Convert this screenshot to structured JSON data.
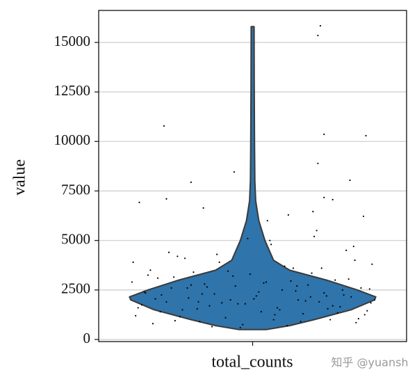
{
  "chart_data": {
    "type": "violin",
    "category": "total_counts",
    "ylabel": "value",
    "watermark": "知乎 @yuansh",
    "color": "#2f74aa",
    "ylim": [
      -105,
      16615
    ],
    "yticks": [
      0,
      2500,
      5000,
      7500,
      10000,
      12500,
      15000
    ],
    "grid": true,
    "xlim": [
      -1.25,
      1.25
    ],
    "violin": {
      "y": [
        500,
        700,
        1000,
        1500,
        2000,
        2150,
        2500,
        3000,
        3500,
        4000,
        5000,
        6000,
        7000,
        8000,
        10000,
        13000,
        15800
      ],
      "density": [
        0.11,
        0.3,
        0.5,
        0.8,
        0.99,
        1.0,
        0.85,
        0.6,
        0.3,
        0.17,
        0.1,
        0.05,
        0.025,
        0.018,
        0.015,
        0.013,
        0.012
      ]
    },
    "points": {
      "jitter": [
        0.55,
        0.53,
        -0.72,
        0.58,
        0.92,
        0.53,
        -0.15,
        0.79,
        -0.5,
        -0.92,
        -0.7,
        0.58,
        0.65,
        -0.4,
        0.49,
        0.29,
        0.9,
        0.12,
        -0.95,
        -0.88,
        -0.81,
        -0.77,
        -0.7,
        -0.66,
        -0.61,
        -0.57,
        -0.52,
        -0.48,
        -0.43,
        -0.39,
        -0.35,
        -0.31,
        -0.27,
        -0.22,
        -0.18,
        -0.14,
        -0.1,
        -0.06,
        -0.02,
        0.03,
        0.07,
        0.11,
        0.15,
        0.2,
        0.24,
        0.28,
        0.33,
        0.37,
        0.41,
        0.45,
        0.5,
        0.54,
        0.58,
        0.63,
        0.67,
        0.71,
        0.76,
        0.8,
        0.84,
        0.88,
        0.93,
        0.97,
        -0.98,
        -0.9,
        -0.83,
        -0.74,
        -0.63,
        -0.55,
        -0.45,
        -0.37,
        -0.25,
        -0.16,
        -0.08,
        0.01,
        0.09,
        0.18,
        0.26,
        0.35,
        0.43,
        0.52,
        0.6,
        0.69,
        0.78,
        0.86,
        0.95,
        -0.93,
        -0.85,
        -0.79,
        -0.68,
        -0.59,
        -0.5,
        -0.41,
        -0.33,
        -0.2,
        -0.12,
        0.05,
        0.14,
        0.22,
        0.31,
        0.39,
        0.47,
        0.56,
        0.65,
        0.73,
        0.82,
        0.91,
        0.99,
        -0.97,
        -0.87,
        -0.75,
        -0.64,
        -0.53,
        -0.44,
        -0.29,
        -0.04,
        0.17,
        0.36,
        0.48,
        0.61,
        0.74,
        0.83,
        0.96
      ],
      "values": [
        15840,
        15350,
        10780,
        10360,
        10290,
        8890,
        8460,
        8040,
        7940,
        6920,
        7100,
        7170,
        7060,
        6640,
        6460,
        6290,
        6220,
        6000,
        1200,
        2400,
        800,
        3100,
        1900,
        2600,
        4200,
        1500,
        2100,
        3400,
        900,
        2800,
        1700,
        2300,
        3900,
        1100,
        2000,
        2700,
        600,
        1800,
        3300,
        2200,
        1400,
        2900,
        4800,
        1600,
        2500,
        700,
        3600,
        2000,
        1300,
        2750,
        5200,
        1900,
        2350,
        1000,
        3000,
        1650,
        4500,
        2150,
        850,
        2600,
        1450,
        3800,
        2900,
        1750,
        3500,
        2250,
        950,
        4100,
        1550,
        2650,
        1850,
        3200,
        750,
        2050,
        2850,
        1250,
        3700,
        2450,
        1950,
        5500,
        2200,
        1350,
        3050,
        1050,
        2550,
        1600,
        3250,
        2050,
        4400,
        1150,
        2750,
        2300,
        650,
        3450,
        1800,
        2400,
        5000,
        1500,
        2950,
        900,
        2150,
        3600,
        1700,
        2500,
        4700,
        1250,
        2000,
        3900,
        2350,
        1400,
        3150,
        2600,
        1900,
        4300,
        5100,
        1000,
        2700,
        3350,
        1550,
        2250,
        4000,
        1850
      ]
    }
  }
}
